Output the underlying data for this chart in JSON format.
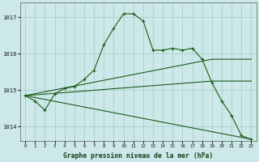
{
  "bg_color": "#cce8e8",
  "grid_color": "#aacfcf",
  "line_color": "#1a5c1a",
  "title": "Graphe pression niveau de la mer (hPa)",
  "ylim": [
    1013.6,
    1017.4
  ],
  "yticks": [
    1014,
    1015,
    1016,
    1017
  ],
  "xlim": [
    -0.5,
    23.5
  ],
  "xticks": [
    0,
    1,
    2,
    3,
    4,
    5,
    6,
    7,
    8,
    9,
    10,
    11,
    12,
    13,
    14,
    15,
    16,
    17,
    18,
    19,
    20,
    21,
    22,
    23
  ],
  "series_main": {
    "x": [
      0,
      1,
      2,
      3,
      4,
      5,
      6,
      7,
      8,
      9,
      10,
      11,
      12,
      13,
      14,
      15,
      16,
      17,
      18,
      19,
      20,
      21,
      22,
      23
    ],
    "y": [
      1014.85,
      1014.7,
      1014.45,
      1014.9,
      1015.05,
      1015.1,
      1015.3,
      1015.55,
      1016.25,
      1016.7,
      1017.1,
      1017.1,
      1016.9,
      1016.1,
      1016.1,
      1016.15,
      1016.1,
      1016.15,
      1015.85,
      1015.2,
      1014.7,
      1014.3,
      1013.75,
      1013.65
    ]
  },
  "series_lines": [
    {
      "x": [
        0,
        19,
        23
      ],
      "y": [
        1014.85,
        1015.85,
        1015.85
      ]
    },
    {
      "x": [
        0,
        19,
        23
      ],
      "y": [
        1014.85,
        1015.25,
        1015.25
      ]
    },
    {
      "x": [
        0,
        23
      ],
      "y": [
        1014.85,
        1013.65
      ]
    }
  ]
}
